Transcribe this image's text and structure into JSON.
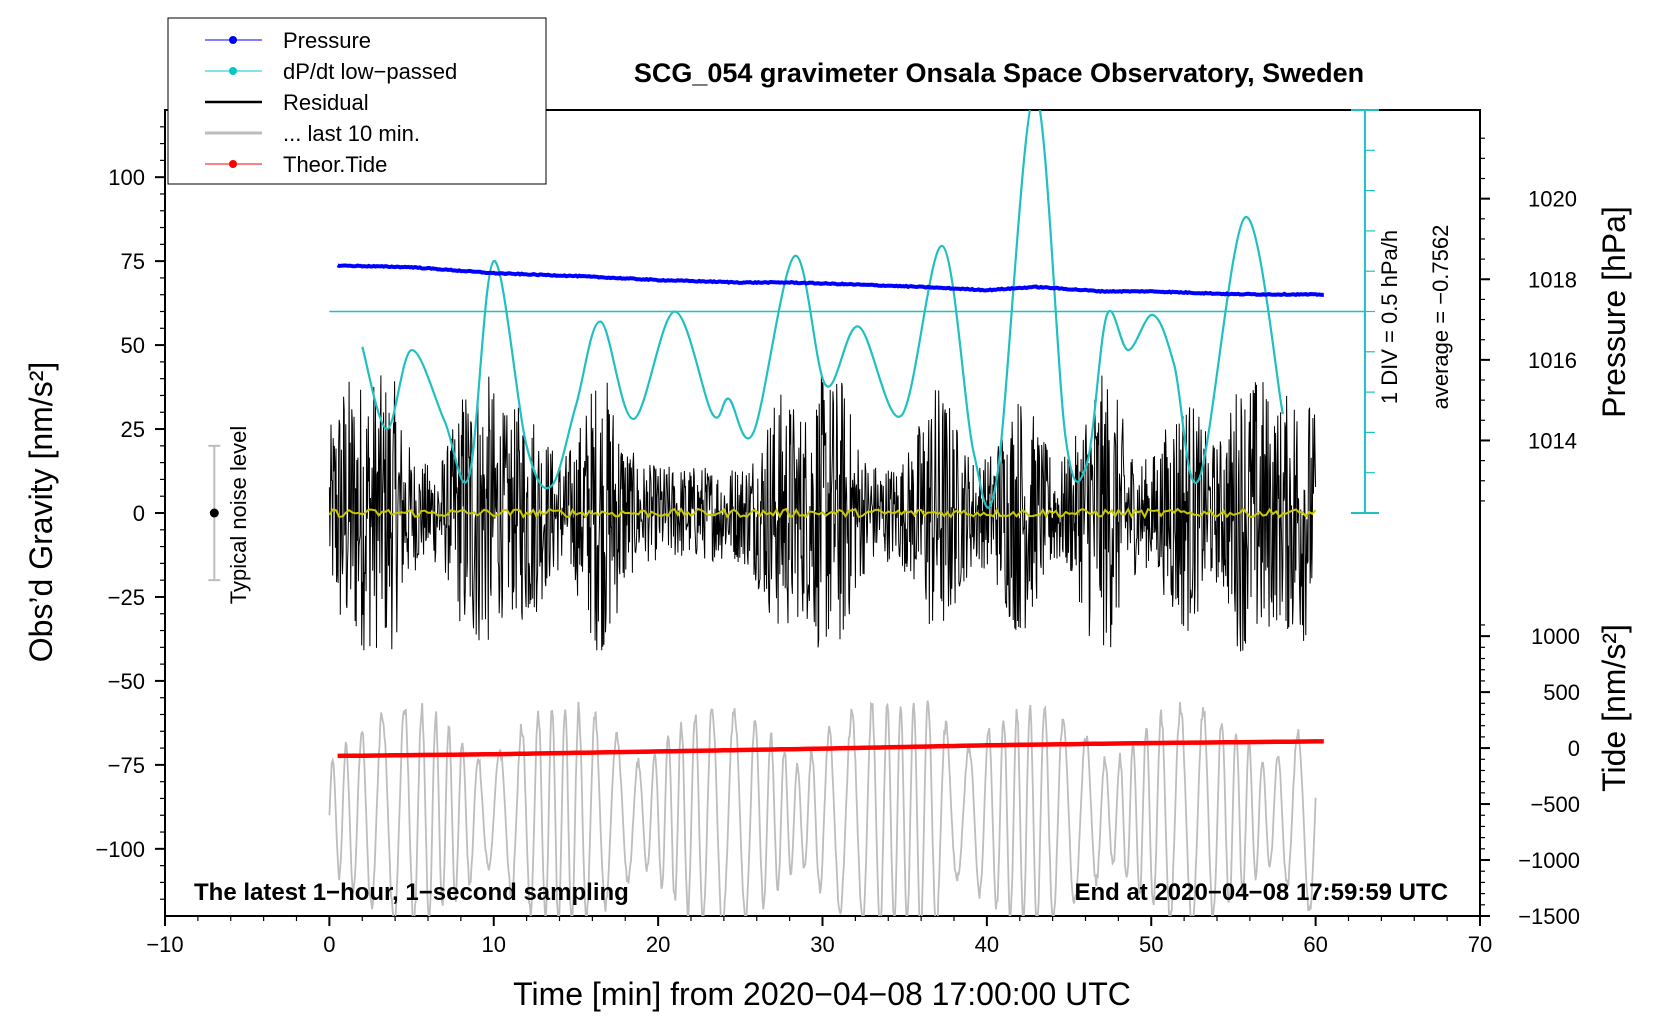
{
  "chart_data": {
    "type": "line",
    "title": "SCG_054 gravimeter Onsala Space Observatory, Sweden",
    "xlabel": "Time [min] from 2020−04−08 17:00:00 UTC",
    "ylabel": "Obs’d Gravity [nm/s²]",
    "ylabel_right_top": "Pressure [hPa]",
    "ylabel_right_bottom": "Tide [nm/s²]",
    "xlim": [
      -10,
      70
    ],
    "ylim": [
      -120,
      120
    ],
    "pressure_ylim": [
      1012.2,
      1022.2
    ],
    "tide_ylim": [
      -1500,
      1500
    ],
    "x_ticks": [
      -10,
      0,
      10,
      20,
      30,
      40,
      50,
      60,
      70
    ],
    "x_tick_labels": [
      "−10",
      "0",
      "10",
      "20",
      "30",
      "40",
      "50",
      "60",
      "70"
    ],
    "y_ticks": [
      100,
      75,
      50,
      25,
      0,
      -25,
      -50,
      -75,
      -100
    ],
    "y_tick_labels": [
      "100",
      "75",
      "50",
      "25",
      "0",
      "−25",
      "−50",
      "−75",
      "−100"
    ],
    "pressure_ticks": [
      1020,
      1018,
      1016,
      1014
    ],
    "pressure_tick_labels": [
      "1020",
      "1018",
      "1016",
      "1014"
    ],
    "tide_ticks": [
      1000,
      500,
      0,
      -500,
      -1000,
      -1500
    ],
    "tide_tick_labels": [
      "1000",
      "500",
      "0",
      "−500",
      "−1000",
      "−1500"
    ],
    "legend": [
      {
        "label": "Pressure",
        "color": "#0000ff",
        "marker": true
      },
      {
        "label": "dP/dt low−passed",
        "color": "#00c8c8",
        "marker": true
      },
      {
        "label": "Residual",
        "color": "#000000",
        "marker": false
      },
      {
        "label": "... last 10 min.",
        "color": "#bdbdbd",
        "marker": false
      },
      {
        "label": "Theor.Tide",
        "color": "#ff0000",
        "marker": true
      }
    ],
    "colors": {
      "pressure": "#0000ff",
      "dpdt": "#20c0c0",
      "residual": "#000000",
      "last10": "#bdbdbd",
      "tide": "#ff0000",
      "residual_mean": "#c8c800"
    },
    "series": [
      {
        "name": "Pressure",
        "unit": "hPa",
        "x": [
          0.5,
          5,
          10,
          15,
          20,
          25,
          28,
          32,
          36,
          40,
          43,
          47,
          50,
          55,
          60.5
        ],
        "values": [
          1018.34,
          1018.3,
          1018.15,
          1018.08,
          1017.98,
          1017.92,
          1017.92,
          1017.87,
          1017.81,
          1017.73,
          1017.81,
          1017.7,
          1017.7,
          1017.63,
          1017.62
        ]
      },
      {
        "name": "dP/dt low−passed",
        "x": [
          2,
          3.5,
          5,
          7,
          8.5,
          10,
          12,
          13.5,
          15,
          16.5,
          18.5,
          21,
          23.3,
          24.3,
          25.8,
          28.3,
          30.2,
          32.2,
          34.8,
          37.3,
          39.2,
          40.6,
          42.9,
          44.8,
          46.1,
          47.3,
          48.6,
          50.1,
          51.4,
          52.9,
          55.7,
          58
        ],
        "values": [
          49.5,
          25,
          48.5,
          27.5,
          11,
          75,
          20,
          8,
          32,
          57,
          28,
          60,
          29.5,
          34,
          24,
          76.5,
          38,
          55.5,
          29,
          79.5,
          18,
          10,
          125,
          22,
          15,
          59,
          48.5,
          59,
          44,
          10,
          88,
          29.5
        ]
      },
      {
        "name": "Residual",
        "x": [
          0,
          60
        ],
        "envelope_min": -50,
        "envelope_max": 53,
        "mean": 0
      },
      {
        "name": "... last 10 min.",
        "x": [
          0,
          60
        ],
        "envelope_min": -125,
        "envelope_max": -55
      },
      {
        "name": "Theor.Tide",
        "unit": "nm/s²",
        "x": [
          0.5,
          10,
          20,
          30,
          40,
          50,
          60.5
        ],
        "values": [
          -70,
          -55,
          -30,
          -5,
          25,
          45,
          60
        ]
      }
    ],
    "dpdt_scale": {
      "reference_value": 60,
      "label_1": "1 DIV = 0.5 hPa/h",
      "label_2": "average = −0.7562"
    },
    "noise_bar": {
      "x": -7,
      "center": 0,
      "low": -20,
      "high": 20,
      "label": "Typical noise level"
    },
    "annotations": {
      "bottom_left": "The latest 1−hour, 1−second sampling",
      "bottom_right": "End at 2020−04−08 17:59:59 UTC"
    }
  }
}
